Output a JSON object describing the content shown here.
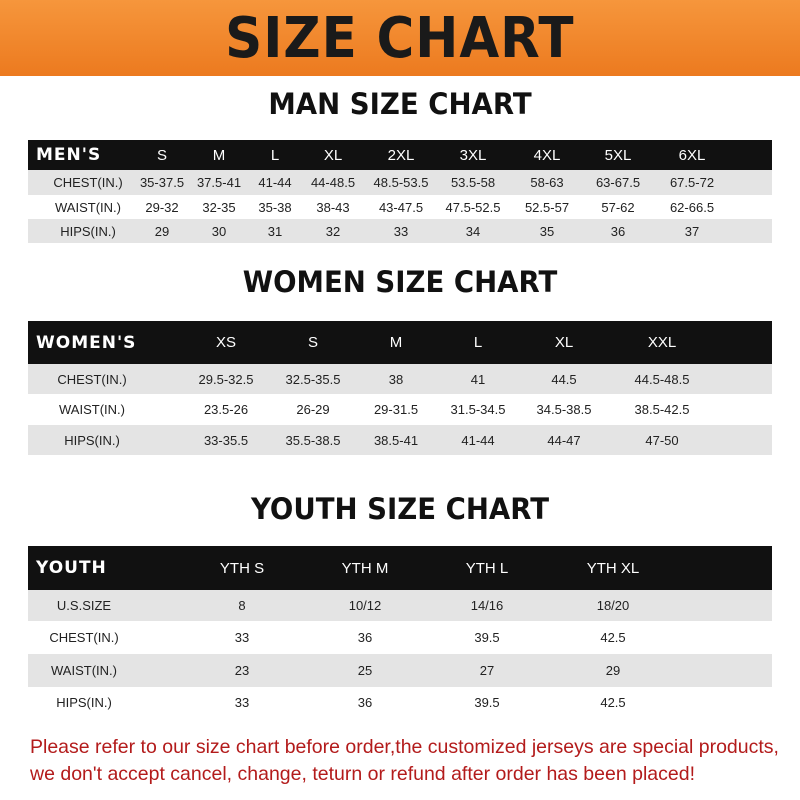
{
  "title": "SIZE CHART",
  "colors": {
    "banner": "#ef8228",
    "header_row": "#111111",
    "note": "#b31b1b"
  },
  "men": {
    "title": "MAN SIZE CHART",
    "header": [
      "MEN'S",
      "S",
      "M",
      "L",
      "XL",
      "2XL",
      "3XL",
      "4XL",
      "5XL",
      "6XL"
    ],
    "rows": [
      [
        "CHEST(IN.)",
        "35-37.5",
        "37.5-41",
        "41-44",
        "44-48.5",
        "48.5-53.5",
        "53.5-58",
        "58-63",
        "63-67.5",
        "67.5-72"
      ],
      [
        "WAIST(IN.)",
        "29-32",
        "32-35",
        "35-38",
        "38-43",
        "43-47.5",
        "47.5-52.5",
        "52.5-57",
        "57-62",
        "62-66.5"
      ],
      [
        "HIPS(IN.)",
        "29",
        "30",
        "31",
        "32",
        "33",
        "34",
        "35",
        "36",
        "37"
      ]
    ]
  },
  "women": {
    "title": "WOMEN SIZE CHART",
    "header": [
      "WOMEN'S",
      "XS",
      "S",
      "M",
      "L",
      "XL",
      "XXL"
    ],
    "rows": [
      [
        "CHEST(IN.)",
        "29.5-32.5",
        "32.5-35.5",
        "38",
        "41",
        "44.5",
        "44.5-48.5"
      ],
      [
        "WAIST(IN.)",
        "23.5-26",
        "26-29",
        "29-31.5",
        "31.5-34.5",
        "34.5-38.5",
        "38.5-42.5"
      ],
      [
        "HIPS(IN.)",
        "33-35.5",
        "35.5-38.5",
        "38.5-41",
        "41-44",
        "44-47",
        "47-50"
      ]
    ]
  },
  "youth": {
    "title": "YOUTH SIZE CHART",
    "header": [
      "YOUTH",
      "YTH S",
      "YTH M",
      "YTH L",
      "YTH XL"
    ],
    "rows": [
      [
        "U.S.SIZE",
        "8",
        "10/12",
        "14/16",
        "18/20"
      ],
      [
        "CHEST(IN.)",
        "33",
        "36",
        "39.5",
        "42.5"
      ],
      [
        "WAIST(IN.)",
        "23",
        "25",
        "27",
        "29"
      ],
      [
        "HIPS(IN.)",
        "33",
        "36",
        "39.5",
        "42.5"
      ]
    ]
  },
  "note": "Please refer to our size chart before order,the customized jerseys are special products, we don't accept cancel, change, teturn or refund after order has been placed!"
}
